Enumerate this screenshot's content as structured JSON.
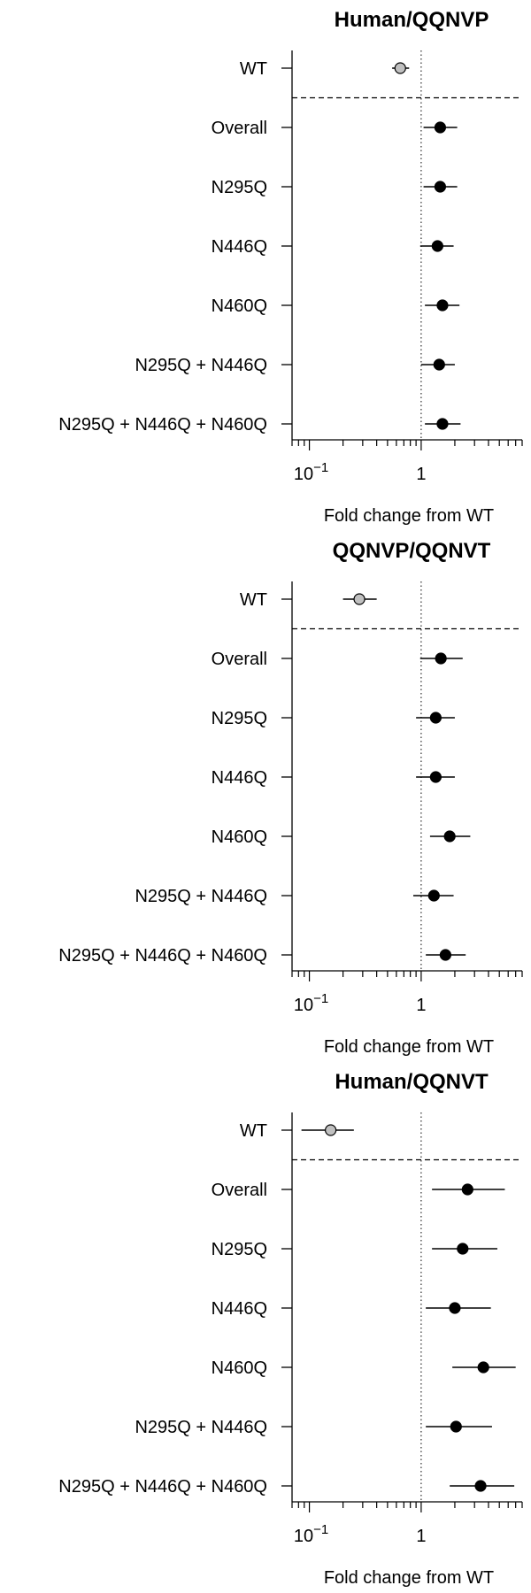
{
  "chart_data": [
    {
      "type": "forest",
      "title": "Human/QQNVP",
      "xlabel": "Fold change from WT",
      "x_scale": "log10",
      "xlim": [
        0.07,
        8
      ],
      "x_ticks": [
        {
          "value": 0.1,
          "base": "10",
          "exp": "−1"
        },
        {
          "value": 1,
          "label": "1"
        }
      ],
      "reference_line_x": 1,
      "colors": {
        "wt": "#c0c0c0",
        "other": "#000000"
      },
      "rows": [
        {
          "label": "WT",
          "estimate": 0.65,
          "lower": 0.55,
          "upper": 0.78
        },
        {
          "label": "Overall",
          "estimate": 1.48,
          "lower": 1.05,
          "upper": 2.1
        },
        {
          "label": "N295Q",
          "estimate": 1.48,
          "lower": 1.05,
          "upper": 2.1
        },
        {
          "label": "N446Q",
          "estimate": 1.4,
          "lower": 0.98,
          "upper": 1.95
        },
        {
          "label": "N460Q",
          "estimate": 1.55,
          "lower": 1.08,
          "upper": 2.2
        },
        {
          "label": "N295Q + N446Q",
          "estimate": 1.45,
          "lower": 1.0,
          "upper": 2.0
        },
        {
          "label": "N295Q + N446Q + N460Q",
          "estimate": 1.55,
          "lower": 1.08,
          "upper": 2.25
        }
      ]
    },
    {
      "type": "forest",
      "title": "QQNVP/QQNVT",
      "xlabel": "Fold change from WT",
      "x_scale": "log10",
      "xlim": [
        0.07,
        8
      ],
      "x_ticks": [
        {
          "value": 0.1,
          "base": "10",
          "exp": "−1"
        },
        {
          "value": 1,
          "label": "1"
        }
      ],
      "reference_line_x": 1,
      "colors": {
        "wt": "#c0c0c0",
        "other": "#000000"
      },
      "rows": [
        {
          "label": "WT",
          "estimate": 0.28,
          "lower": 0.2,
          "upper": 0.4
        },
        {
          "label": "Overall",
          "estimate": 1.5,
          "lower": 0.98,
          "upper": 2.35
        },
        {
          "label": "N295Q",
          "estimate": 1.35,
          "lower": 0.9,
          "upper": 2.0
        },
        {
          "label": "N446Q",
          "estimate": 1.35,
          "lower": 0.9,
          "upper": 2.0
        },
        {
          "label": "N460Q",
          "estimate": 1.8,
          "lower": 1.2,
          "upper": 2.75
        },
        {
          "label": "N295Q + N446Q",
          "estimate": 1.3,
          "lower": 0.85,
          "upper": 1.95
        },
        {
          "label": "N295Q + N446Q + N460Q",
          "estimate": 1.65,
          "lower": 1.1,
          "upper": 2.5
        }
      ]
    },
    {
      "type": "forest",
      "title": "Human/QQNVT",
      "xlabel": "Fold change from WT",
      "x_scale": "log10",
      "xlim": [
        0.07,
        8
      ],
      "x_ticks": [
        {
          "value": 0.1,
          "base": "10",
          "exp": "−1"
        },
        {
          "value": 1,
          "label": "1"
        }
      ],
      "reference_line_x": 1,
      "colors": {
        "wt": "#c0c0c0",
        "other": "#000000"
      },
      "rows": [
        {
          "label": "WT",
          "estimate": 0.155,
          "lower": 0.085,
          "upper": 0.25
        },
        {
          "label": "Overall",
          "estimate": 2.6,
          "lower": 1.25,
          "upper": 5.6
        },
        {
          "label": "N295Q",
          "estimate": 2.35,
          "lower": 1.25,
          "upper": 4.8
        },
        {
          "label": "N446Q",
          "estimate": 2.0,
          "lower": 1.1,
          "upper": 4.2
        },
        {
          "label": "N460Q",
          "estimate": 3.6,
          "lower": 1.9,
          "upper": 7.0
        },
        {
          "label": "N295Q + N446Q",
          "estimate": 2.05,
          "lower": 1.1,
          "upper": 4.3
        },
        {
          "label": "N295Q + N446Q + N460Q",
          "estimate": 3.4,
          "lower": 1.8,
          "upper": 6.8
        }
      ]
    }
  ]
}
